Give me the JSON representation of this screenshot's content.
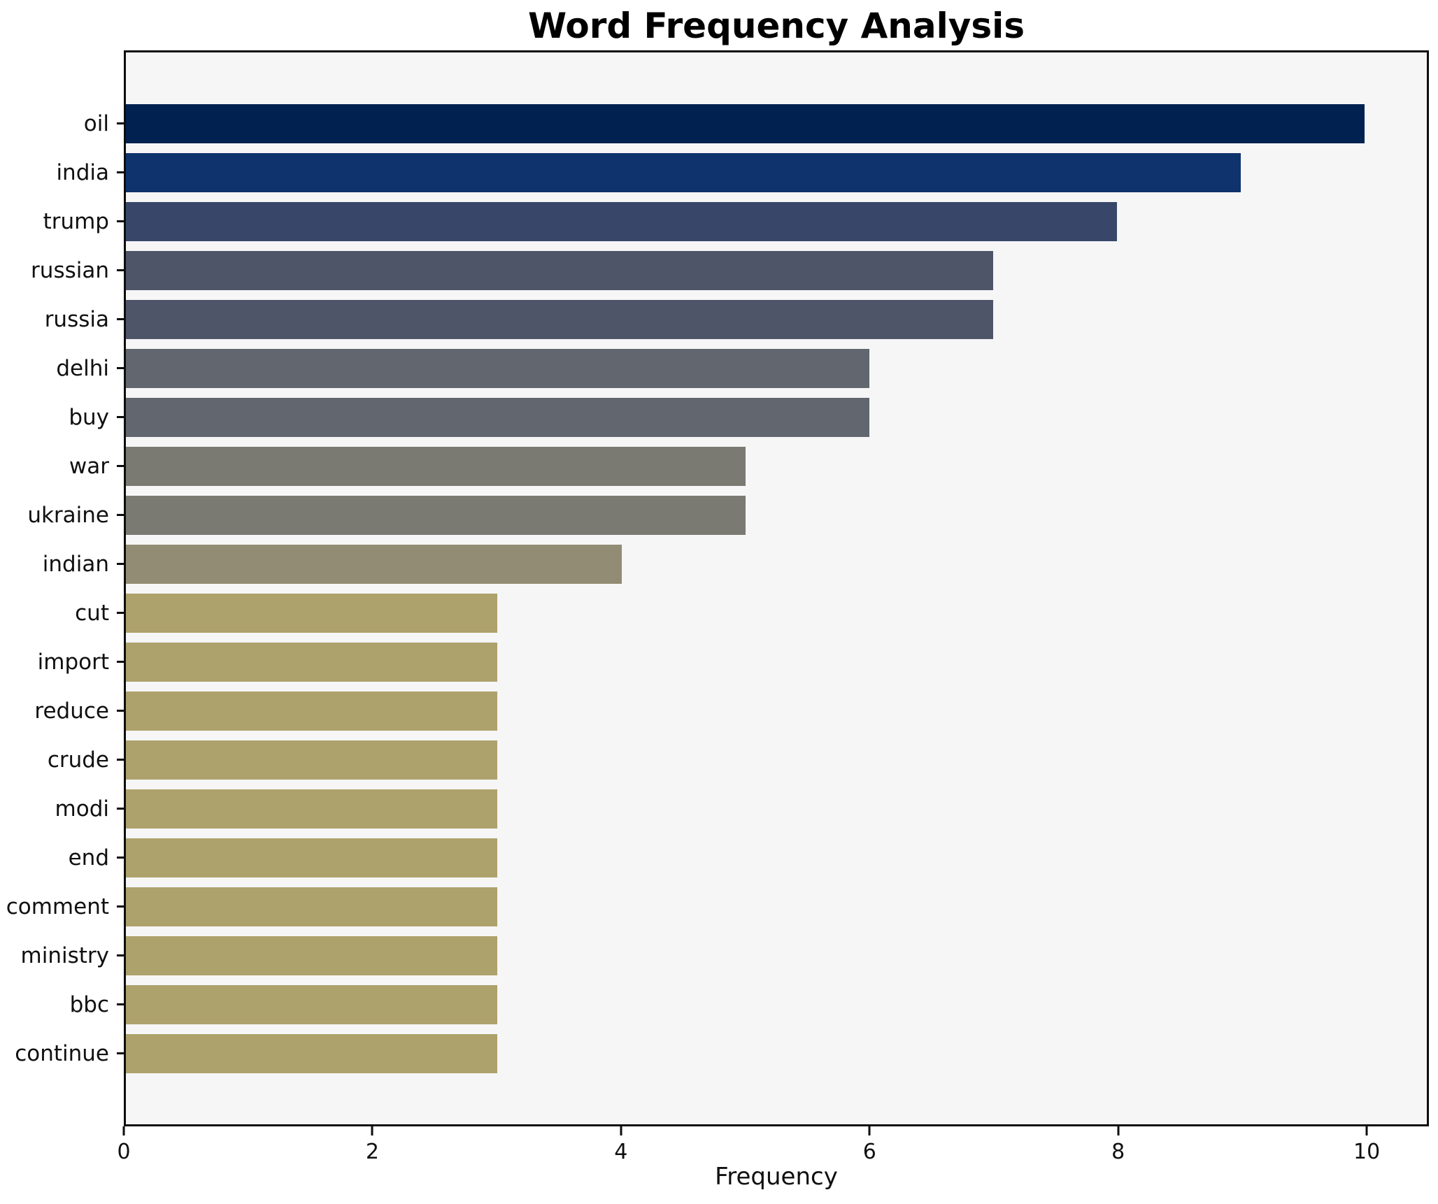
{
  "chart_data": {
    "type": "bar",
    "orientation": "horizontal",
    "title": "Word Frequency Analysis",
    "xlabel": "Frequency",
    "ylabel": "",
    "categories": [
      "oil",
      "india",
      "trump",
      "russian",
      "russia",
      "delhi",
      "buy",
      "war",
      "ukraine",
      "indian",
      "cut",
      "import",
      "reduce",
      "crude",
      "modi",
      "end",
      "comment",
      "ministry",
      "bbc",
      "continue"
    ],
    "values": [
      10,
      9,
      8,
      7,
      7,
      6,
      6,
      5,
      5,
      4,
      3,
      3,
      3,
      3,
      3,
      3,
      3,
      3,
      3,
      3
    ],
    "bar_colors": [
      "#012150",
      "#0e336d",
      "#384769",
      "#4e5569",
      "#4e5569",
      "#62666f",
      "#62666f",
      "#7a7a72",
      "#7a7a72",
      "#938c75",
      "#ada26b",
      "#ada26b",
      "#ada26b",
      "#ada26b",
      "#ada26b",
      "#ada26b",
      "#ada26b",
      "#ada26b",
      "#ada26b",
      "#ada26b"
    ],
    "xticks": [
      0,
      2,
      4,
      6,
      8,
      10
    ],
    "xlim": [
      0,
      10.5
    ],
    "grid": false,
    "legend": null,
    "plot_background": "#f6f6f7",
    "figure_background": "#ffffff",
    "spine_color": "#0d0d0d",
    "text_color": "#101010"
  }
}
